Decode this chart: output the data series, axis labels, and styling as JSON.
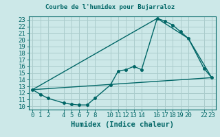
{
  "title": "Courbe de l'humidex pour Bujarraloz",
  "xlabel": "Humidex (Indice chaleur)",
  "ylabel": "",
  "bg_color": "#cce8e8",
  "grid_color": "#aacccc",
  "line_color": "#006666",
  "xlim": [
    -0.5,
    23.5
  ],
  "ylim": [
    9.5,
    23.5
  ],
  "yticks": [
    10,
    11,
    12,
    13,
    14,
    15,
    16,
    17,
    18,
    19,
    20,
    21,
    22,
    23
  ],
  "xticks": [
    0,
    1,
    2,
    4,
    5,
    6,
    7,
    8,
    10,
    11,
    12,
    13,
    14,
    16,
    17,
    18,
    19,
    20,
    22,
    23
  ],
  "line1_x": [
    0,
    1,
    2,
    4,
    5,
    6,
    7,
    8,
    10,
    11,
    12,
    13,
    14,
    16,
    17,
    18,
    19,
    20,
    22,
    23
  ],
  "line1_y": [
    12.5,
    11.8,
    11.2,
    10.5,
    10.3,
    10.2,
    10.2,
    11.2,
    13.2,
    15.3,
    15.5,
    16.0,
    15.5,
    23.2,
    22.8,
    22.2,
    21.2,
    20.2,
    15.7,
    14.3
  ],
  "line2_x": [
    0,
    16,
    20,
    23
  ],
  "line2_y": [
    12.5,
    23.2,
    20.2,
    14.3
  ],
  "line3_x": [
    0,
    23
  ],
  "line3_y": [
    12.5,
    14.3
  ],
  "marker_size": 2.5,
  "line_width": 1.0,
  "font_size": 6.5,
  "xlabel_font_size": 7.5,
  "title_font_size": 6.5
}
